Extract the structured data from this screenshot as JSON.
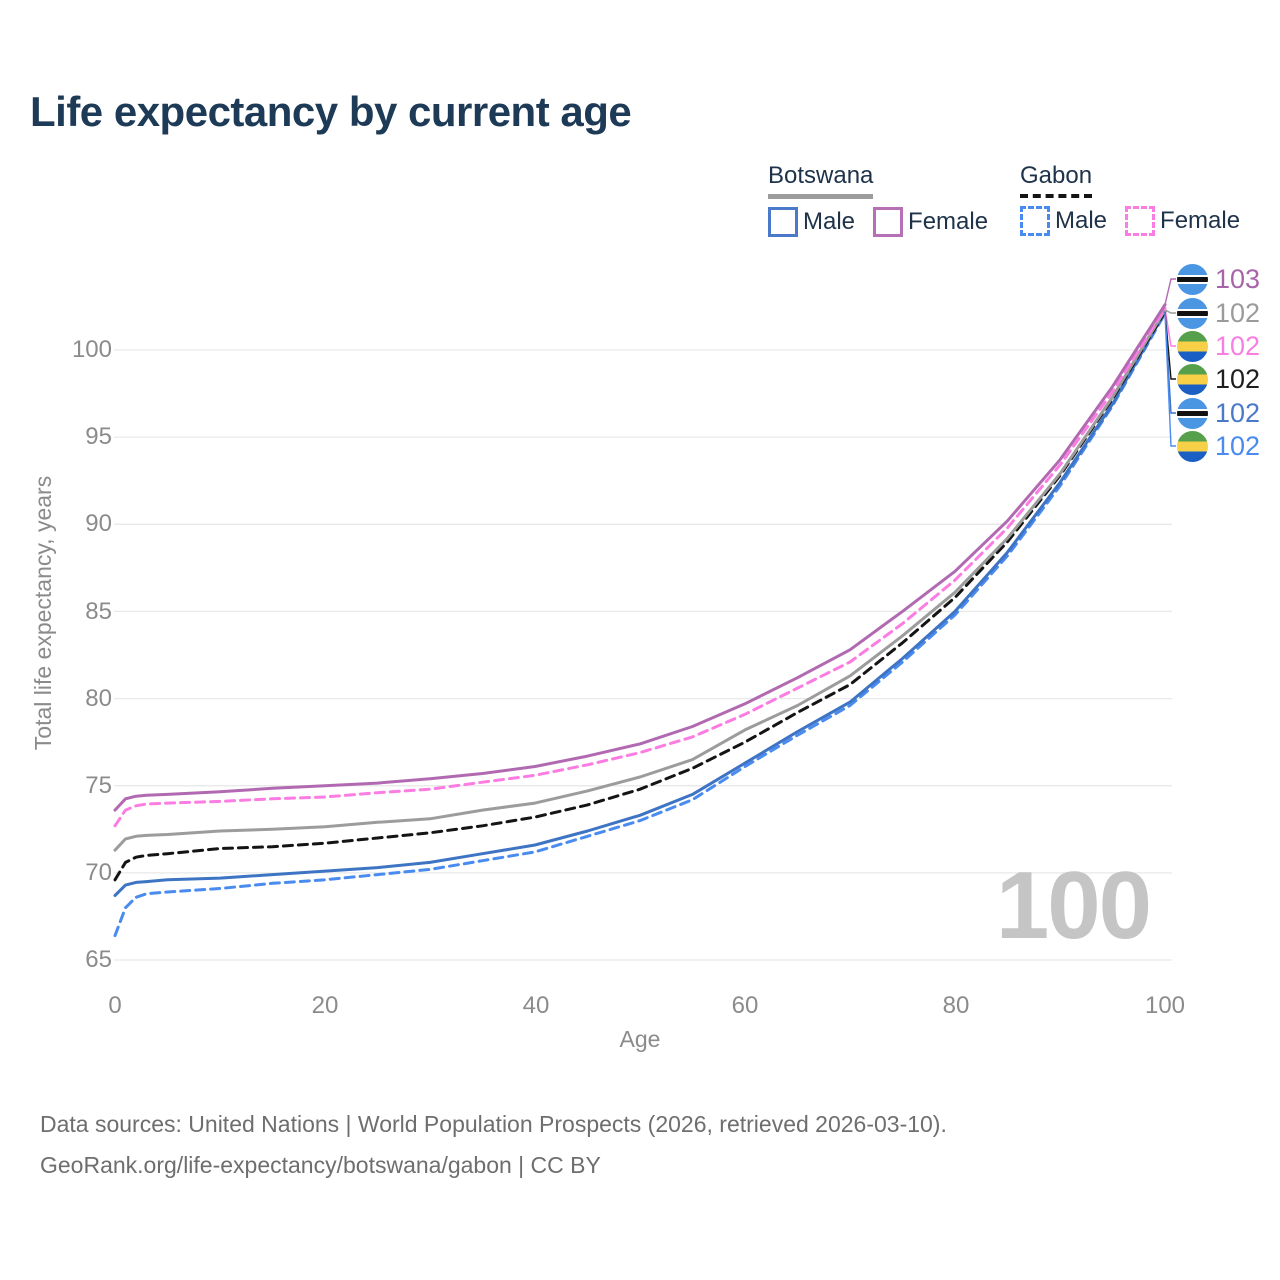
{
  "title": "Life expectancy by current age",
  "watermark": "100",
  "legend": {
    "groups": [
      {
        "label": "Botswana",
        "style": "solid",
        "underline_color": "#9c9c9c",
        "items": [
          {
            "label": "Male",
            "color": "#4a7ac9"
          },
          {
            "label": "Female",
            "color": "#b671b6"
          }
        ]
      },
      {
        "label": "Gabon",
        "style": "dashed",
        "underline_color": "#141414",
        "items": [
          {
            "label": "Male",
            "color": "#4a8bf0"
          },
          {
            "label": "Female",
            "color": "#fb7ce2"
          }
        ]
      }
    ]
  },
  "flags": {
    "botswana": {
      "colors": [
        "#4a96e3",
        "#ffffff",
        "#111111"
      ]
    },
    "gabon": {
      "colors": [
        "#57a04b",
        "#f7d048",
        "#1a5fc4"
      ]
    }
  },
  "end_labels": [
    {
      "series": "Botswana Female",
      "value": "103",
      "text_color": "#a864a8",
      "flag": "botswana"
    },
    {
      "series": "Botswana Both sexes",
      "value": "102",
      "text_color": "#9b9b9b",
      "flag": "botswana"
    },
    {
      "series": "Gabon Female",
      "value": "102",
      "text_color": "#f87fe1",
      "flag": "gabon"
    },
    {
      "series": "Gabon Both sexes",
      "value": "102",
      "text_color": "#1f1f1f",
      "flag": "gabon"
    },
    {
      "series": "Botswana Male",
      "value": "102",
      "text_color": "#4a79c9",
      "flag": "botswana"
    },
    {
      "series": "Gabon Male",
      "value": "102",
      "text_color": "#4a8bf0",
      "flag": "gabon"
    }
  ],
  "footer": {
    "line1": "Data sources: United Nations | World Population Prospects (2026, retrieved 2026-03-10).",
    "line2": "GeoRank.org/life-expectancy/botswana/gabon | CC BY"
  },
  "chart_data": {
    "type": "line",
    "title": "Life expectancy by current age",
    "xlabel": "Age",
    "ylabel": "Total life expectancy, years",
    "xlim": [
      0,
      100
    ],
    "ylim": [
      65,
      103
    ],
    "xticks": [
      0,
      20,
      40,
      60,
      80,
      100
    ],
    "yticks": [
      65,
      70,
      75,
      80,
      85,
      90,
      95,
      100
    ],
    "grid": "horizontal",
    "legend_position": "top-right",
    "x": [
      0,
      1,
      2,
      3,
      5,
      10,
      15,
      20,
      25,
      30,
      35,
      40,
      45,
      50,
      55,
      60,
      65,
      70,
      75,
      80,
      85,
      90,
      95,
      100
    ],
    "series": [
      {
        "name": "Gabon Male",
        "country": "Gabon",
        "sex": "Male",
        "color": "#4a8bf0",
        "dashed": true,
        "values": [
          66.4,
          68.0,
          68.6,
          68.8,
          68.9,
          69.1,
          69.4,
          69.6,
          69.9,
          70.2,
          70.7,
          71.2,
          72.1,
          73.0,
          74.2,
          76.1,
          77.9,
          79.6,
          82.1,
          84.8,
          88.2,
          92.2,
          96.8,
          102.1
        ]
      },
      {
        "name": "Botswana Male",
        "country": "Botswana",
        "sex": "Male",
        "color": "#3e74c4",
        "dashed": false,
        "values": [
          68.7,
          69.3,
          69.45,
          69.5,
          69.6,
          69.7,
          69.9,
          70.1,
          70.3,
          70.6,
          71.1,
          71.6,
          72.4,
          73.3,
          74.5,
          76.3,
          78.1,
          79.8,
          82.3,
          85.0,
          88.4,
          92.4,
          96.9,
          102.2
        ]
      },
      {
        "name": "Gabon Both sexes",
        "country": "Gabon",
        "sex": "Both sexes",
        "color": "#141414",
        "dashed": true,
        "values": [
          69.6,
          70.6,
          70.9,
          71.0,
          71.1,
          71.4,
          71.5,
          71.7,
          72.0,
          72.3,
          72.7,
          73.2,
          73.9,
          74.8,
          76.0,
          77.5,
          79.2,
          80.8,
          83.2,
          85.8,
          89.0,
          92.8,
          97.2,
          102.2
        ]
      },
      {
        "name": "Botswana Both sexes",
        "country": "Botswana",
        "sex": "Both sexes",
        "color": "#9c9c9c",
        "dashed": false,
        "values": [
          71.3,
          71.95,
          72.1,
          72.15,
          72.2,
          72.4,
          72.5,
          72.65,
          72.9,
          73.1,
          73.6,
          74.0,
          74.7,
          75.5,
          76.5,
          78.2,
          79.6,
          81.3,
          83.6,
          86.1,
          89.2,
          92.9,
          97.3,
          102.3
        ]
      },
      {
        "name": "Gabon Female",
        "country": "Gabon",
        "sex": "Female",
        "color": "#fb7ce2",
        "dashed": true,
        "values": [
          72.7,
          73.6,
          73.85,
          73.95,
          74.0,
          74.1,
          74.25,
          74.35,
          74.6,
          74.8,
          75.2,
          75.6,
          76.2,
          76.9,
          77.8,
          79.1,
          80.6,
          82.1,
          84.3,
          86.8,
          89.8,
          93.4,
          97.6,
          102.4
        ]
      },
      {
        "name": "Botswana Female",
        "country": "Botswana",
        "sex": "Female",
        "color": "#b16ab1",
        "dashed": false,
        "values": [
          73.6,
          74.25,
          74.4,
          74.45,
          74.5,
          74.65,
          74.85,
          75.0,
          75.15,
          75.4,
          75.7,
          76.1,
          76.7,
          77.4,
          78.4,
          79.7,
          81.2,
          82.8,
          85.0,
          87.3,
          90.2,
          93.7,
          97.9,
          102.6
        ]
      }
    ]
  }
}
